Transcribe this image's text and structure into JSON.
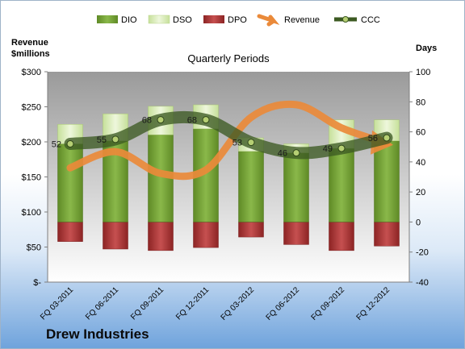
{
  "company": "Drew Industries",
  "chart_data": {
    "type": "bar",
    "title": "Quarterly Periods",
    "ylabel_left": "Revenue $millions",
    "ylabel_right": "Days",
    "categories": [
      "FQ 03-2011",
      "FQ 06-2011",
      "FQ 09-2011",
      "FQ 12-2011",
      "FQ 03-2012",
      "FQ 06-2012",
      "FQ 09-2012",
      "FQ 12-2012"
    ],
    "left_axis": {
      "min": 0,
      "max": 300,
      "step": 50,
      "ticks": [
        "$-",
        "$50",
        "$100",
        "$150",
        "$200",
        "$250",
        "$300"
      ]
    },
    "right_axis": {
      "min": -40,
      "max": 100,
      "step": 20,
      "ticks": [
        "-40",
        "-20",
        "0",
        "20",
        "40",
        "60",
        "80",
        "100"
      ]
    },
    "series": [
      {
        "name": "DIO",
        "kind": "bar",
        "axis": "right",
        "color": "#6e9a2e",
        "values": [
          52,
          54,
          58,
          62,
          47,
          46,
          49,
          54
        ]
      },
      {
        "name": "DSO",
        "kind": "bar-stacked",
        "axis": "right",
        "color": "#d8ebb2",
        "values": [
          13,
          18,
          19,
          16,
          9,
          6,
          19,
          14
        ]
      },
      {
        "name": "DPO",
        "kind": "bar",
        "axis": "right",
        "color": "#a83232",
        "values": [
          -13,
          -18,
          -19,
          -17,
          -10,
          -15,
          -19,
          -16
        ]
      },
      {
        "name": "Revenue",
        "kind": "line",
        "axis": "left",
        "color": "#ea8a3a",
        "values": [
          163,
          186,
          155,
          160,
          235,
          253,
          220,
          198
        ]
      },
      {
        "name": "CCC",
        "kind": "line-marker",
        "axis": "right",
        "color": "#3c5a22",
        "values": [
          52,
          55,
          68,
          68,
          53,
          46,
          49,
          56
        ]
      }
    ],
    "legend": {
      "placement": "top",
      "items": [
        "DIO",
        "DSO",
        "DPO",
        "Revenue",
        "CCC"
      ]
    },
    "grid": false
  }
}
